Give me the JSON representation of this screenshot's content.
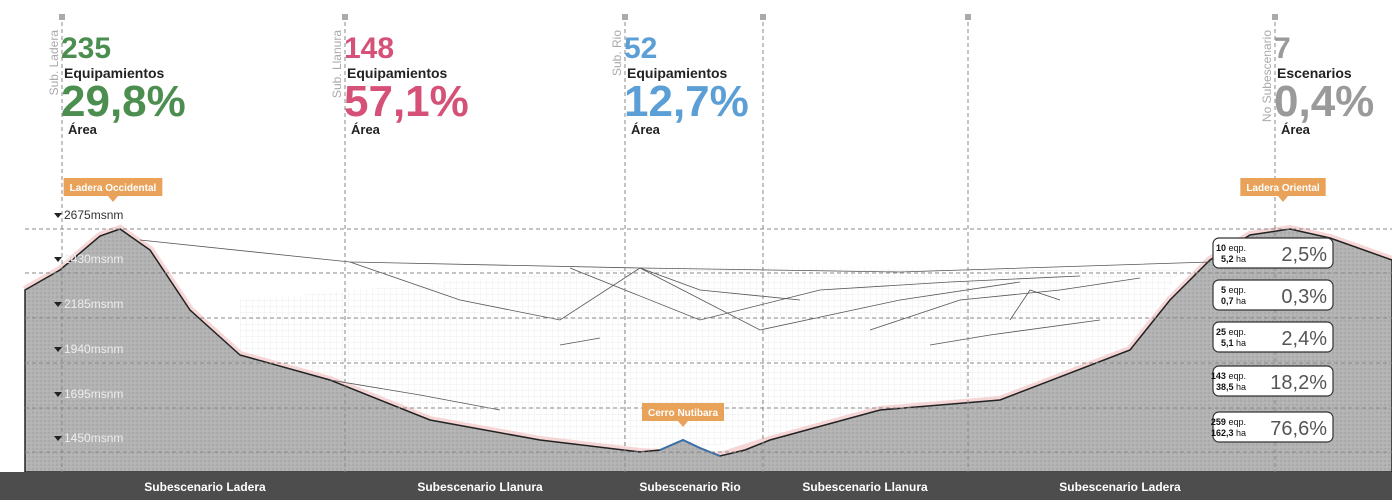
{
  "stats": [
    {
      "label": "Sub. Ladera",
      "count": "235",
      "unit": "Equipamientos",
      "percent": "29,8%",
      "area_label": "Área"
    },
    {
      "label": "Sub. Llanura",
      "count": "148",
      "unit": "Equipamientos",
      "percent": "57,1%",
      "area_label": "Área"
    },
    {
      "label": "Sub. Rio",
      "count": "52",
      "unit": "Equipamientos",
      "percent": "12,7%",
      "area_label": "Área"
    },
    {
      "label": "No Subescenario",
      "count": "7",
      "unit": "Escenarios",
      "percent": "0,4%",
      "area_label": "Área"
    }
  ],
  "callouts": [
    "Ladera Occidental",
    "Ladera Oriental",
    "Cerro Nutibara"
  ],
  "elevations": [
    "2675msnm",
    "2430msnm",
    "2185msnm",
    "1940msnm",
    "1695msnm",
    "1450msnm"
  ],
  "table": [
    {
      "eqp": "10",
      "eqp_unit": "eqp.",
      "ha": "5,2",
      "ha_unit": "ha",
      "percent": "2,5%"
    },
    {
      "eqp": "5",
      "eqp_unit": "eqp.",
      "ha": "0,7",
      "ha_unit": "ha",
      "percent": "0,3%"
    },
    {
      "eqp": "25",
      "eqp_unit": "eqp.",
      "ha": "5,1",
      "ha_unit": "ha",
      "percent": "2,4%"
    },
    {
      "eqp": "143",
      "eqp_unit": "eqp.",
      "ha": "38,5",
      "ha_unit": "ha",
      "percent": "18,2%"
    },
    {
      "eqp": "259",
      "eqp_unit": "eqp.",
      "ha": "162,3",
      "ha_unit": "ha",
      "percent": "76,6%"
    }
  ],
  "subscenarios": [
    "Subescenario Ladera",
    "Subescenario Llanura",
    "Subescenario Rio",
    "Subescenario Llanura",
    "Subescenario Ladera"
  ]
}
